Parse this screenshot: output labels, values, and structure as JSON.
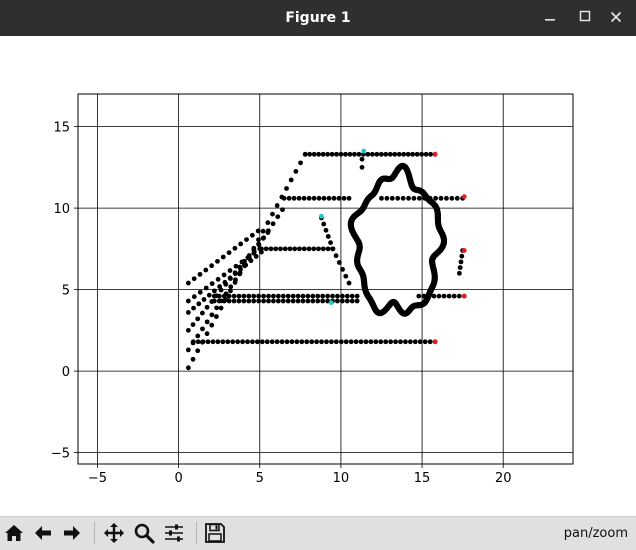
{
  "window": {
    "title": "Figure 1"
  },
  "chart_data": {
    "type": "scatter",
    "title": "",
    "xlabel": "",
    "ylabel": "",
    "xlim": [
      -6.2,
      24.3
    ],
    "ylim": [
      -5.7,
      17.0
    ],
    "xticks": [
      -5,
      0,
      5,
      10,
      15,
      20
    ],
    "yticks": [
      -5,
      0,
      5,
      10,
      15
    ],
    "xtick_labels": [
      "−5",
      "0",
      "5",
      "10",
      "15",
      "20"
    ],
    "ytick_labels": [
      "−5",
      "0",
      "5",
      "10",
      "15"
    ],
    "grid": true,
    "grid_color": "#000000",
    "point_color": "#000000",
    "highlight_colors": {
      "cyan": "#1fc9c9",
      "red": "#e02020"
    },
    "series": [
      {
        "kind": "line",
        "from": [
          0.6,
          0.2
        ],
        "to": [
          7.8,
          13.3
        ],
        "n": 26
      },
      {
        "kind": "line",
        "from": [
          0.6,
          1.3
        ],
        "to": [
          6.4,
          9.9
        ],
        "n": 21
      },
      {
        "kind": "line",
        "from": [
          0.6,
          2.5
        ],
        "to": [
          5.5,
          8.5
        ],
        "n": 18
      },
      {
        "kind": "line",
        "from": [
          0.6,
          3.6
        ],
        "to": [
          5.1,
          7.3
        ],
        "n": 15
      },
      {
        "kind": "line",
        "from": [
          0.6,
          4.3
        ],
        "to": [
          5.0,
          7.5
        ],
        "n": 13
      },
      {
        "kind": "line",
        "from": [
          0.6,
          5.4
        ],
        "to": [
          4.9,
          8.6
        ],
        "n": 13
      },
      {
        "kind": "line",
        "from": [
          7.8,
          13.3
        ],
        "to": [
          15.8,
          13.3
        ],
        "n": 30
      },
      {
        "kind": "line",
        "from": [
          6.5,
          10.6
        ],
        "to": [
          10.5,
          10.6
        ],
        "n": 14
      },
      {
        "kind": "line",
        "from": [
          12.5,
          10.6
        ],
        "to": [
          17.5,
          10.6
        ],
        "n": 16
      },
      {
        "kind": "line",
        "from": [
          5.1,
          7.5
        ],
        "to": [
          9.5,
          7.5
        ],
        "n": 16
      },
      {
        "kind": "line",
        "from": [
          2.2,
          4.6
        ],
        "to": [
          11.0,
          4.6
        ],
        "n": 30
      },
      {
        "kind": "line",
        "from": [
          2.2,
          4.3
        ],
        "to": [
          11.0,
          4.3
        ],
        "n": 30
      },
      {
        "kind": "line",
        "from": [
          14.8,
          4.6
        ],
        "to": [
          17.6,
          4.6
        ],
        "n": 10
      },
      {
        "kind": "line",
        "from": [
          0.9,
          1.8
        ],
        "to": [
          15.8,
          1.8
        ],
        "n": 50
      },
      {
        "kind": "line",
        "from": [
          8.8,
          9.4
        ],
        "to": [
          9.5,
          7.5
        ],
        "n": 6
      },
      {
        "kind": "line",
        "from": [
          9.5,
          7.5
        ],
        "to": [
          10.5,
          5.4
        ],
        "n": 6
      },
      {
        "kind": "line",
        "from": [
          17.5,
          7.4
        ],
        "to": [
          17.3,
          6.0
        ],
        "n": 5
      },
      {
        "kind": "line",
        "from": [
          11.3,
          12.5
        ],
        "to": [
          11.3,
          13.0
        ],
        "n": 2
      },
      {
        "kind": "closed-curve",
        "center": [
          13.5,
          7.8
        ],
        "rx": 2.6,
        "ry": 4.2
      }
    ],
    "highlight_points": [
      {
        "x": 11.4,
        "y": 13.5,
        "color": "cyan"
      },
      {
        "x": 8.8,
        "y": 9.5,
        "color": "cyan"
      },
      {
        "x": 9.4,
        "y": 4.2,
        "color": "cyan"
      },
      {
        "x": 15.8,
        "y": 13.3,
        "color": "red"
      },
      {
        "x": 17.6,
        "y": 10.7,
        "color": "red"
      },
      {
        "x": 17.6,
        "y": 7.4,
        "color": "red"
      },
      {
        "x": 17.6,
        "y": 4.6,
        "color": "red"
      },
      {
        "x": 15.8,
        "y": 1.8,
        "color": "red"
      }
    ]
  },
  "toolbar": {
    "buttons": [
      {
        "name": "home-button",
        "icon": "home-icon"
      },
      {
        "name": "back-button",
        "icon": "arrow-left-icon"
      },
      {
        "name": "forward-button",
        "icon": "arrow-right-icon"
      },
      {
        "name": "pan-button",
        "icon": "move-icon"
      },
      {
        "name": "zoom-button",
        "icon": "magnifier-icon"
      },
      {
        "name": "configure-subplots-button",
        "icon": "sliders-icon"
      },
      {
        "name": "save-button",
        "icon": "floppy-disk-icon"
      }
    ],
    "status_text": "pan/zoom"
  }
}
